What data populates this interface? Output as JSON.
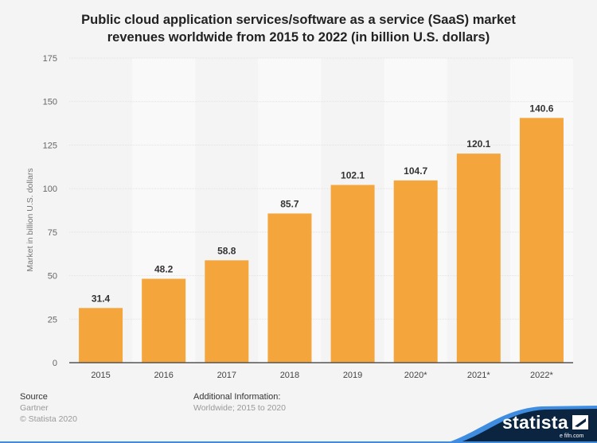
{
  "chart_data": {
    "type": "bar",
    "title": "Public cloud application services/software as a service (SaaS) market revenues worldwide from 2015 to 2022 (in billion U.S. dollars)",
    "title_lines": [
      "Public cloud application services/software as a service (SaaS) market",
      "revenues worldwide from 2015 to 2022 (in billion U.S. dollars)"
    ],
    "categories": [
      "2015",
      "2016",
      "2017",
      "2018",
      "2019",
      "2020*",
      "2021*",
      "2022*"
    ],
    "values": [
      31.4,
      48.2,
      58.8,
      85.7,
      102.1,
      104.7,
      120.1,
      140.6
    ],
    "value_labels": [
      "31.4",
      "48.2",
      "58.8",
      "85.7",
      "102.1",
      "104.7",
      "120.1",
      "140.6"
    ],
    "xlabel": "",
    "ylabel": "Market in billion U.S. dollars",
    "ylim": [
      0,
      175
    ],
    "yticks": [
      0,
      25,
      50,
      75,
      100,
      125,
      150,
      175
    ],
    "grid": true,
    "bar_color": "#f4a53c"
  },
  "footer": {
    "source_heading": "Source",
    "source_lines": [
      "Gartner",
      "© Statista 2020"
    ],
    "additional_heading": "Additional Information:",
    "additional_text": "Worldwide; 2015 to 2020"
  },
  "logo": {
    "text": "statista",
    "watermark": "e fifn.com",
    "navy": "#0b2540",
    "blue": "#3f8de0"
  }
}
